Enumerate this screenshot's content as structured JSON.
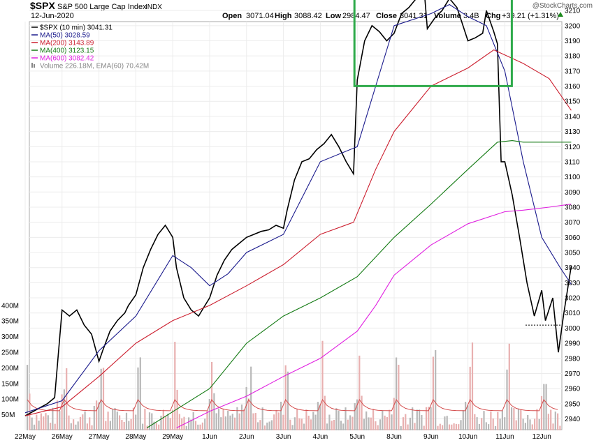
{
  "header": {
    "symbol": "$SPX",
    "name": "S&P 500 Large Cap Index",
    "exchange": "INDX",
    "date": "12-Jun-2020",
    "watermark": "@StockCharts.com",
    "open_label": "Open",
    "open": "3071.04",
    "high_label": "High",
    "high": "3088.42",
    "low_label": "Low",
    "low": "2984.47",
    "close_label": "Close",
    "close": "3041.31",
    "volume_label": "Volume",
    "volume": "3.4B",
    "chg_label": "Chg",
    "chg": "+39.21 (+1.31%)"
  },
  "legend": [
    {
      "label": "$SPX (10 min) 3041.31",
      "color": "#000000",
      "kind": "line"
    },
    {
      "label": "MA(50) 3028.59",
      "color": "#1a1a8c",
      "kind": "line"
    },
    {
      "label": "MA(200) 3143.89",
      "color": "#cc1f2f",
      "kind": "line"
    },
    {
      "label": "MA(400) 3123.15",
      "color": "#137a13",
      "kind": "line"
    },
    {
      "label": "MA(600) 3082.42",
      "color": "#e020e0",
      "kind": "line"
    },
    {
      "label": "Volume 226.18M, EMA(60) 70.42M",
      "color": "#888888",
      "kind": "bar"
    }
  ],
  "chart_data": {
    "type": "line",
    "title": "$SPX S&P 500 Large Cap Index INDX",
    "interval": "10 min",
    "x_labels": [
      "22May",
      "26May",
      "27May",
      "28May",
      "29May",
      "1Jun",
      "2Jun",
      "3Jun",
      "4Jun",
      "5Jun",
      "8Jun",
      "9Jun",
      "10Jun",
      "11Jun",
      "12Jun"
    ],
    "y_price_ticks": [
      2940,
      2950,
      2960,
      2970,
      2980,
      2990,
      3000,
      3010,
      3020,
      3030,
      3040,
      3050,
      3060,
      3070,
      3080,
      3090,
      3100,
      3110,
      3120,
      3130,
      3140,
      3150,
      3160,
      3170,
      3180,
      3190,
      3200,
      3210,
      3220,
      3230
    ],
    "y_volume_ticks": [
      "50M",
      "100M",
      "150M",
      "200M",
      "250M",
      "300M",
      "350M",
      "400M"
    ],
    "ylim_price": [
      2935,
      3235
    ],
    "grid": true,
    "reference_line": {
      "name": "previous close",
      "value": 3002
    },
    "highlight_box": {
      "x_range": [
        "5Jun",
        "11Jun"
      ],
      "y_range": [
        3161,
        3230
      ],
      "color": "#2eaa4a"
    },
    "series": [
      {
        "name": "$SPX",
        "color": "#000000",
        "points": [
          [
            0.0,
            2942
          ],
          [
            0.3,
            2946
          ],
          [
            0.6,
            2950
          ],
          [
            0.8,
            2954
          ],
          [
            1.0,
            3012
          ],
          [
            1.2,
            3008
          ],
          [
            1.4,
            3012
          ],
          [
            1.6,
            3002
          ],
          [
            1.8,
            2996
          ],
          [
            2.0,
            2978
          ],
          [
            2.1,
            2985
          ],
          [
            2.3,
            2998
          ],
          [
            2.5,
            3005
          ],
          [
            2.7,
            3010
          ],
          [
            2.8,
            3015
          ],
          [
            3.0,
            3022
          ],
          [
            3.2,
            3040
          ],
          [
            3.4,
            3052
          ],
          [
            3.6,
            3062
          ],
          [
            3.8,
            3068
          ],
          [
            4.0,
            3060
          ],
          [
            4.1,
            3040
          ],
          [
            4.3,
            3020
          ],
          [
            4.5,
            3012
          ],
          [
            4.7,
            3008
          ],
          [
            4.8,
            3012
          ],
          [
            5.0,
            3020
          ],
          [
            5.2,
            3035
          ],
          [
            5.4,
            3045
          ],
          [
            5.6,
            3052
          ],
          [
            5.8,
            3056
          ],
          [
            6.0,
            3060
          ],
          [
            6.2,
            3062
          ],
          [
            6.4,
            3064
          ],
          [
            6.6,
            3065
          ],
          [
            6.8,
            3068
          ],
          [
            7.0,
            3066
          ],
          [
            7.1,
            3078
          ],
          [
            7.3,
            3098
          ],
          [
            7.5,
            3110
          ],
          [
            7.7,
            3112
          ],
          [
            7.9,
            3118
          ],
          [
            8.1,
            3122
          ],
          [
            8.3,
            3128
          ],
          [
            8.5,
            3120
          ],
          [
            8.7,
            3110
          ],
          [
            8.9,
            3102
          ],
          [
            9.0,
            3164
          ],
          [
            9.2,
            3190
          ],
          [
            9.4,
            3200
          ],
          [
            9.6,
            3196
          ],
          [
            9.8,
            3190
          ],
          [
            10.0,
            3195
          ],
          [
            10.2,
            3208
          ],
          [
            10.4,
            3212
          ],
          [
            10.6,
            3218
          ],
          [
            10.7,
            3225
          ],
          [
            10.8,
            3228
          ],
          [
            10.9,
            3198
          ],
          [
            11.1,
            3205
          ],
          [
            11.3,
            3210
          ],
          [
            11.5,
            3218
          ],
          [
            11.7,
            3212
          ],
          [
            11.8,
            3205
          ],
          [
            12.0,
            3190
          ],
          [
            12.2,
            3192
          ],
          [
            12.4,
            3195
          ],
          [
            12.5,
            3210
          ],
          [
            12.7,
            3196
          ],
          [
            12.8,
            3188
          ],
          [
            12.9,
            3110
          ],
          [
            13.0,
            3110
          ],
          [
            13.2,
            3088
          ],
          [
            13.4,
            3060
          ],
          [
            13.6,
            3030
          ],
          [
            13.8,
            3008
          ],
          [
            14.0,
            3025
          ],
          [
            14.1,
            3005
          ],
          [
            14.3,
            3020
          ],
          [
            14.45,
            2984
          ],
          [
            14.6,
            3010
          ],
          [
            14.8,
            3041
          ]
        ]
      },
      {
        "name": "MA(50)",
        "color": "#1a1a8c",
        "points": [
          [
            0,
            2944
          ],
          [
            1,
            2952
          ],
          [
            2,
            2985
          ],
          [
            3,
            3008
          ],
          [
            4,
            3048
          ],
          [
            4.5,
            3040
          ],
          [
            5,
            3028
          ],
          [
            5.5,
            3036
          ],
          [
            6,
            3050
          ],
          [
            7,
            3062
          ],
          [
            8,
            3110
          ],
          [
            9,
            3120
          ],
          [
            9.5,
            3160
          ],
          [
            10,
            3200
          ],
          [
            11,
            3208
          ],
          [
            11.5,
            3214
          ],
          [
            12,
            3206
          ],
          [
            12.5,
            3200
          ],
          [
            13,
            3170
          ],
          [
            13.5,
            3110
          ],
          [
            14,
            3060
          ],
          [
            14.5,
            3040
          ],
          [
            14.8,
            3029
          ]
        ]
      },
      {
        "name": "MA(200)",
        "color": "#cc1f2f",
        "points": [
          [
            0,
            2942
          ],
          [
            1,
            2948
          ],
          [
            2,
            2968
          ],
          [
            3,
            2990
          ],
          [
            4,
            3005
          ],
          [
            5,
            3015
          ],
          [
            6,
            3028
          ],
          [
            7,
            3042
          ],
          [
            8,
            3062
          ],
          [
            8.9,
            3070
          ],
          [
            9.5,
            3105
          ],
          [
            10,
            3130
          ],
          [
            11,
            3160
          ],
          [
            12,
            3172
          ],
          [
            12.7,
            3184
          ],
          [
            13.5,
            3175
          ],
          [
            14.2,
            3165
          ],
          [
            14.8,
            3144
          ]
        ]
      },
      {
        "name": "MA(400)",
        "color": "#137a13",
        "points": [
          [
            3.3,
            2934
          ],
          [
            5,
            2960
          ],
          [
            6,
            2990
          ],
          [
            7,
            3008
          ],
          [
            8,
            3020
          ],
          [
            9,
            3034
          ],
          [
            10,
            3060
          ],
          [
            11,
            3082
          ],
          [
            12,
            3105
          ],
          [
            12.8,
            3123
          ],
          [
            13.2,
            3124
          ],
          [
            13.5,
            3123
          ],
          [
            14.8,
            3123
          ]
        ]
      },
      {
        "name": "MA(600)",
        "color": "#e020e0",
        "points": [
          [
            4.1,
            2934
          ],
          [
            5,
            2945
          ],
          [
            6,
            2955
          ],
          [
            7,
            2968
          ],
          [
            8,
            2980
          ],
          [
            9,
            2998
          ],
          [
            9.5,
            3015
          ],
          [
            10,
            3035
          ],
          [
            11,
            3055
          ],
          [
            12,
            3069
          ],
          [
            13,
            3077
          ],
          [
            13.5,
            3078
          ],
          [
            14.2,
            3080
          ],
          [
            14.8,
            3082
          ]
        ]
      }
    ]
  }
}
